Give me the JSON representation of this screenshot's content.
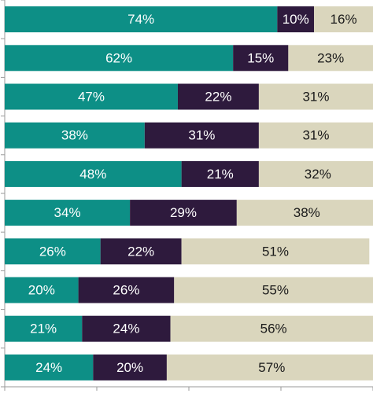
{
  "chart_data": {
    "type": "bar",
    "orientation": "horizontal",
    "stacked": true,
    "xlim": [
      0,
      100
    ],
    "grid": false,
    "legend": "none",
    "categories": [
      "",
      "",
      "",
      "",
      "",
      "",
      "",
      "",
      "",
      ""
    ],
    "series": [
      {
        "color": "#0d8f86",
        "label_color": "#ffffff",
        "values": [
          74,
          62,
          47,
          38,
          48,
          34,
          26,
          20,
          21,
          24
        ]
      },
      {
        "color": "#2e1a3d",
        "label_color": "#ffffff",
        "values": [
          10,
          15,
          22,
          31,
          21,
          29,
          22,
          26,
          24,
          20
        ]
      },
      {
        "color": "#dad6bd",
        "label_color": "#1a1a1a",
        "values": [
          16,
          23,
          31,
          31,
          32,
          38,
          51,
          55,
          56,
          57
        ]
      }
    ],
    "labels": [
      [
        "74%",
        "10%",
        "16%"
      ],
      [
        "62%",
        "15%",
        "23%"
      ],
      [
        "47%",
        "22%",
        "31%"
      ],
      [
        "38%",
        "31%",
        "31%"
      ],
      [
        "48%",
        "21%",
        "32%"
      ],
      [
        "34%",
        "29%",
        "38%"
      ],
      [
        "26%",
        "22%",
        "51%"
      ],
      [
        "20%",
        "26%",
        "55%"
      ],
      [
        "21%",
        "24%",
        "56%"
      ],
      [
        "24%",
        "20%",
        "57%"
      ]
    ]
  }
}
